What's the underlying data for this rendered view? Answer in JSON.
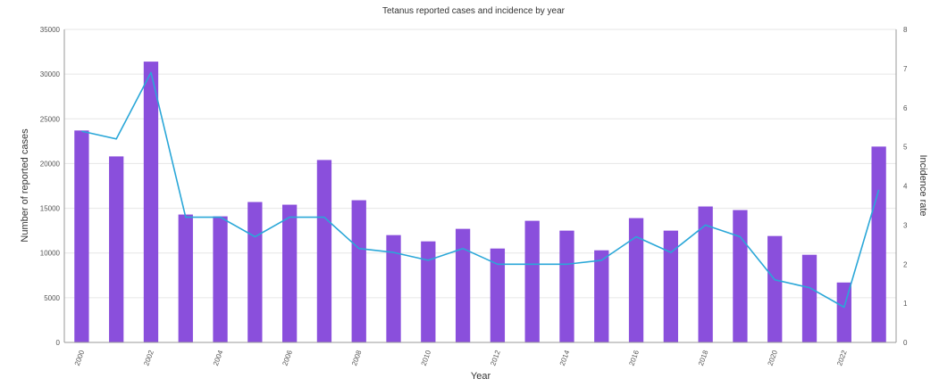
{
  "chart_data": {
    "type": "bar",
    "title": "Tetanus reported cases and incidence by year",
    "xlabel": "Year",
    "ylabel": "Number of reported cases",
    "y2label": "Incidence rate",
    "categories": [
      "2000",
      "2001",
      "2002",
      "2003",
      "2004",
      "2005",
      "2006",
      "2007",
      "2008",
      "2009",
      "2010",
      "2011",
      "2012",
      "2013",
      "2014",
      "2015",
      "2016",
      "2017",
      "2018",
      "2019",
      "2020",
      "2021",
      "2022",
      "2023"
    ],
    "x_tick_labels": [
      "2000",
      "",
      "2002",
      "",
      "2004",
      "",
      "2006",
      "",
      "2008",
      "",
      "2010",
      "",
      "2012",
      "",
      "2014",
      "",
      "2016",
      "",
      "2018",
      "",
      "2020",
      "",
      "2022",
      ""
    ],
    "ylim": [
      0,
      35000
    ],
    "y_ticks": [
      "0",
      "5000",
      "10000",
      "15000",
      "20000",
      "25000",
      "30000",
      "35000"
    ],
    "y2lim": [
      0,
      8
    ],
    "y2_ticks": [
      "0",
      "1",
      "2",
      "3",
      "4",
      "5",
      "6",
      "7",
      "8"
    ],
    "grid": true,
    "series": [
      {
        "type": "bar",
        "axis": "left",
        "color": "#8a4fdc",
        "values": [
          23700,
          20800,
          31400,
          14300,
          14100,
          15700,
          15400,
          20400,
          15900,
          12000,
          11300,
          12700,
          10500,
          13600,
          12500,
          10300,
          13900,
          12500,
          15200,
          14800,
          11900,
          9800,
          6700,
          21900
        ]
      },
      {
        "type": "line",
        "axis": "right",
        "color": "#2aa7d8",
        "values": [
          5.4,
          5.2,
          6.9,
          3.2,
          3.2,
          2.7,
          3.2,
          3.2,
          2.4,
          2.3,
          2.1,
          2.4,
          2.0,
          2.0,
          2.0,
          2.1,
          2.7,
          2.3,
          3.0,
          2.7,
          1.6,
          1.4,
          0.9,
          3.9
        ]
      }
    ]
  }
}
